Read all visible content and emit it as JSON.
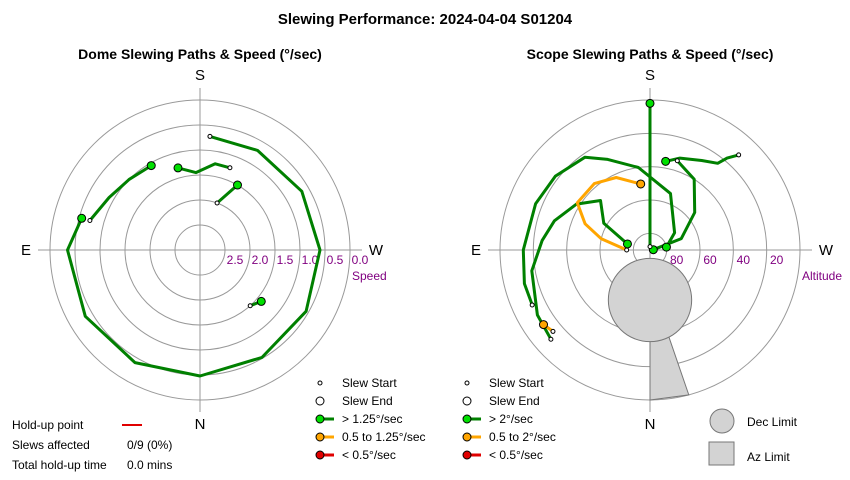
{
  "chart_data": {
    "type": "scatter",
    "title": "Slewing Performance: 2024-04-04 S01204",
    "colors": {
      "fast": "#00e000",
      "fast_line": "#008000",
      "medium": "#ffa500",
      "slow": "#e00000",
      "ring": "#999999",
      "limit_fill": "#d3d3d3",
      "limit_stroke": "#777777"
    },
    "charts": [
      {
        "id": "dome",
        "title": "Dome Slewing Paths & Speed (°/sec)",
        "compass": {
          "top": "S",
          "bottom": "N",
          "left": "E",
          "right": "W"
        },
        "radial_axis": {
          "label": "Speed",
          "max": 3.0,
          "inverted": true,
          "ticks": [
            2.5,
            2.0,
            1.5,
            1.0,
            0.5,
            0.0
          ],
          "tick_labels": [
            "2.5",
            "2.0",
            "1.5",
            "1.0",
            "0.5",
            "0.0"
          ]
        },
        "paths": [
          {
            "speed": "fast",
            "points": [
              {
                "az": 160,
                "r": 2.0
              },
              {
                "az": 150,
                "r": 1.5
              }
            ]
          },
          {
            "speed": "fast",
            "points": [
              {
                "az": 195,
                "r": 1.3
              },
              {
                "az": 183,
                "r": 1.45
              },
              {
                "az": 170,
                "r": 1.25
              },
              {
                "az": 160,
                "r": 1.25
              }
            ]
          },
          {
            "speed": "fast",
            "points": [
              {
                "az": 210,
                "r": 1.05
              },
              {
                "az": 225,
                "r": 1.0
              },
              {
                "az": 240,
                "r": 0.9
              },
              {
                "az": 255,
                "r": 0.72
              }
            ]
          },
          {
            "speed": "fast",
            "points": [
              {
                "az": 255,
                "r": 0.55
              },
              {
                "az": 270,
                "r": 0.35
              },
              {
                "az": 300,
                "r": 0.35
              },
              {
                "az": 330,
                "r": 0.4
              },
              {
                "az": 0,
                "r": 0.48
              },
              {
                "az": 30,
                "r": 0.52
              },
              {
                "az": 60,
                "r": 0.55
              },
              {
                "az": 90,
                "r": 0.6
              },
              {
                "az": 120,
                "r": 0.65
              },
              {
                "az": 150,
                "r": 0.7
              },
              {
                "az": 175,
                "r": 0.72
              }
            ]
          },
          {
            "speed": "fast",
            "points": [
              {
                "az": 42,
                "r": 1.5
              },
              {
                "az": 50,
                "r": 1.4
              }
            ]
          }
        ],
        "starts": [
          {
            "az": 160,
            "r": 2.0
          },
          {
            "az": 160,
            "r": 1.25
          },
          {
            "az": 255,
            "r": 0.72
          },
          {
            "az": 175,
            "r": 0.72
          },
          {
            "az": 42,
            "r": 1.5
          }
        ],
        "ends": [
          {
            "az": 150,
            "r": 1.5
          },
          {
            "az": 195,
            "r": 1.3
          },
          {
            "az": 210,
            "r": 1.05
          },
          {
            "az": 255,
            "r": 0.55
          },
          {
            "az": 50,
            "r": 1.4
          }
        ]
      },
      {
        "id": "scope",
        "title": "Scope Slewing Paths & Speed (°/sec)",
        "compass": {
          "top": "S",
          "bottom": "N",
          "left": "E",
          "right": "W"
        },
        "radial_axis": {
          "label": "Altitude",
          "max": 90,
          "inverted": true,
          "ticks": [
            80,
            60,
            40,
            20
          ],
          "tick_labels": [
            "80",
            "60",
            "40",
            "20"
          ]
        },
        "dec_limit": {
          "az": 0,
          "alt": 60,
          "radius_deg": 25
        },
        "az_limit": [
          {
            "az": 0,
            "alt": 50
          },
          {
            "az": 10,
            "alt": 50
          },
          {
            "az": 15,
            "alt": 0
          },
          {
            "az": 0,
            "alt": 0
          }
        ],
        "paths": [
          {
            "speed": "fast",
            "points": [
              {
                "az": 180,
                "alt": 2
              },
              {
                "az": 180,
                "alt": 20
              },
              {
                "az": 180,
                "alt": 40
              },
              {
                "az": 180,
                "alt": 60
              },
              {
                "az": 180,
                "alt": 75
              },
              {
                "az": 180,
                "alt": 88
              }
            ]
          },
          {
            "speed": "fast",
            "points": [
              {
                "az": 100,
                "alt": 80
              },
              {
                "az": 125,
                "alt": 72
              },
              {
                "az": 160,
                "alt": 54
              },
              {
                "az": 188,
                "alt": 40
              },
              {
                "az": 205,
                "alt": 30
              },
              {
                "az": 215,
                "alt": 22
              },
              {
                "az": 232,
                "alt": 18
              },
              {
                "az": 248,
                "alt": 16
              },
              {
                "az": 270,
                "alt": 14
              },
              {
                "az": 285,
                "alt": 12
              },
              {
                "az": 295,
                "alt": 12
              }
            ]
          },
          {
            "speed": "fast",
            "points": [
              {
                "az": 170,
                "alt": 36
              },
              {
                "az": 162,
                "alt": 32
              },
              {
                "az": 150,
                "alt": 28
              },
              {
                "az": 142,
                "alt": 24
              },
              {
                "az": 140,
                "alt": 18
              },
              {
                "az": 137,
                "alt": 12
              }
            ]
          },
          {
            "speed": "fast",
            "points": [
              {
                "az": 255,
                "alt": 76
              },
              {
                "az": 240,
                "alt": 58
              },
              {
                "az": 225,
                "alt": 48
              },
              {
                "az": 238,
                "alt": 38
              },
              {
                "az": 253,
                "alt": 30
              },
              {
                "az": 265,
                "alt": 25
              },
              {
                "az": 280,
                "alt": 18
              },
              {
                "az": 300,
                "alt": 12
              },
              {
                "az": 312,
                "alt": 10
              }
            ]
          },
          {
            "speed": "fast",
            "points": [
              {
                "az": 95,
                "alt": 88
              },
              {
                "az": 110,
                "alt": 70
              },
              {
                "az": 130,
                "alt": 55
              },
              {
                "az": 148,
                "alt": 40
              },
              {
                "az": 163,
                "alt": 34
              }
            ]
          },
          {
            "speed": "medium",
            "points": [
              {
                "az": 188,
                "alt": 50
              },
              {
                "az": 205,
                "alt": 42
              },
              {
                "az": 220,
                "alt": 38
              },
              {
                "az": 237,
                "alt": 38
              },
              {
                "az": 248,
                "alt": 48
              },
              {
                "az": 257,
                "alt": 60
              },
              {
                "az": 270,
                "alt": 76
              }
            ]
          },
          {
            "speed": "medium",
            "points": [
              {
                "az": 310,
                "alt": 14
              },
              {
                "az": 305,
                "alt": 12
              }
            ]
          }
        ],
        "starts": [
          {
            "az": 180,
            "alt": 88
          },
          {
            "az": 295,
            "alt": 12
          },
          {
            "az": 137,
            "alt": 12
          },
          {
            "az": 312,
            "alt": 10
          },
          {
            "az": 163,
            "alt": 34
          },
          {
            "az": 270,
            "alt": 76
          },
          {
            "az": 310,
            "alt": 14
          }
        ],
        "ends": [
          {
            "az": 180,
            "alt": 2
          },
          {
            "az": 100,
            "alt": 80
          },
          {
            "az": 170,
            "alt": 36
          },
          {
            "az": 255,
            "alt": 76
          },
          {
            "az": 95,
            "alt": 88
          },
          {
            "az": 188,
            "alt": 50
          },
          {
            "az": 305,
            "alt": 12
          }
        ]
      }
    ],
    "legends": [
      {
        "items": [
          {
            "kind": "start",
            "label": "Slew Start"
          },
          {
            "kind": "end",
            "label": "Slew End"
          },
          {
            "kind": "fast",
            "label": "> 1.25°/sec"
          },
          {
            "kind": "medium",
            "label": "0.5 to 1.25°/sec"
          },
          {
            "kind": "slow",
            "label": "< 0.5°/sec"
          }
        ]
      },
      {
        "items": [
          {
            "kind": "start",
            "label": "Slew Start"
          },
          {
            "kind": "end",
            "label": "Slew End"
          },
          {
            "kind": "fast",
            "label": "> 2°/sec"
          },
          {
            "kind": "medium",
            "label": "0.5 to 2°/sec"
          },
          {
            "kind": "slow",
            "label": "< 0.5°/sec"
          }
        ]
      }
    ],
    "limit_legend": {
      "dec": "Dec Limit",
      "az": "Az Limit"
    },
    "stats": {
      "holdup_label": "Hold-up point",
      "slews_label": "Slews affected",
      "slews_value": "0/9 (0%)",
      "time_label": "Total hold-up time",
      "time_value": "0.0 mins"
    }
  }
}
